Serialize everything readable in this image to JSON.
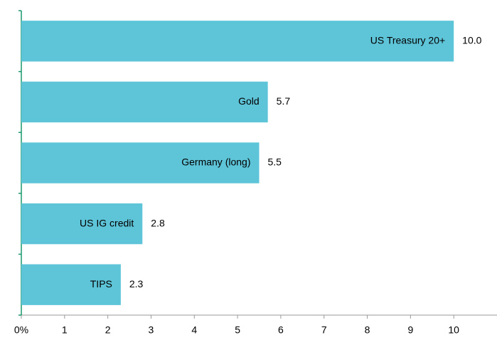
{
  "chart_data": {
    "type": "bar",
    "orientation": "horizontal",
    "categories": [
      "US Treasury 20+",
      "Gold",
      "Germany (long)",
      "US IG credit",
      "TIPS"
    ],
    "values": [
      10,
      5.7,
      5.5,
      2.8,
      2.3
    ],
    "value_labels": [
      "10.0",
      "5.7",
      "5.5",
      "2.8",
      "2.3"
    ],
    "color": "#5ec4d8",
    "xlim": [
      0,
      11
    ],
    "xticks": [
      {
        "value": 0,
        "label": "0%"
      },
      1,
      2,
      3,
      4,
      5,
      6,
      7,
      8,
      9,
      10
    ],
    "grid": false
  }
}
